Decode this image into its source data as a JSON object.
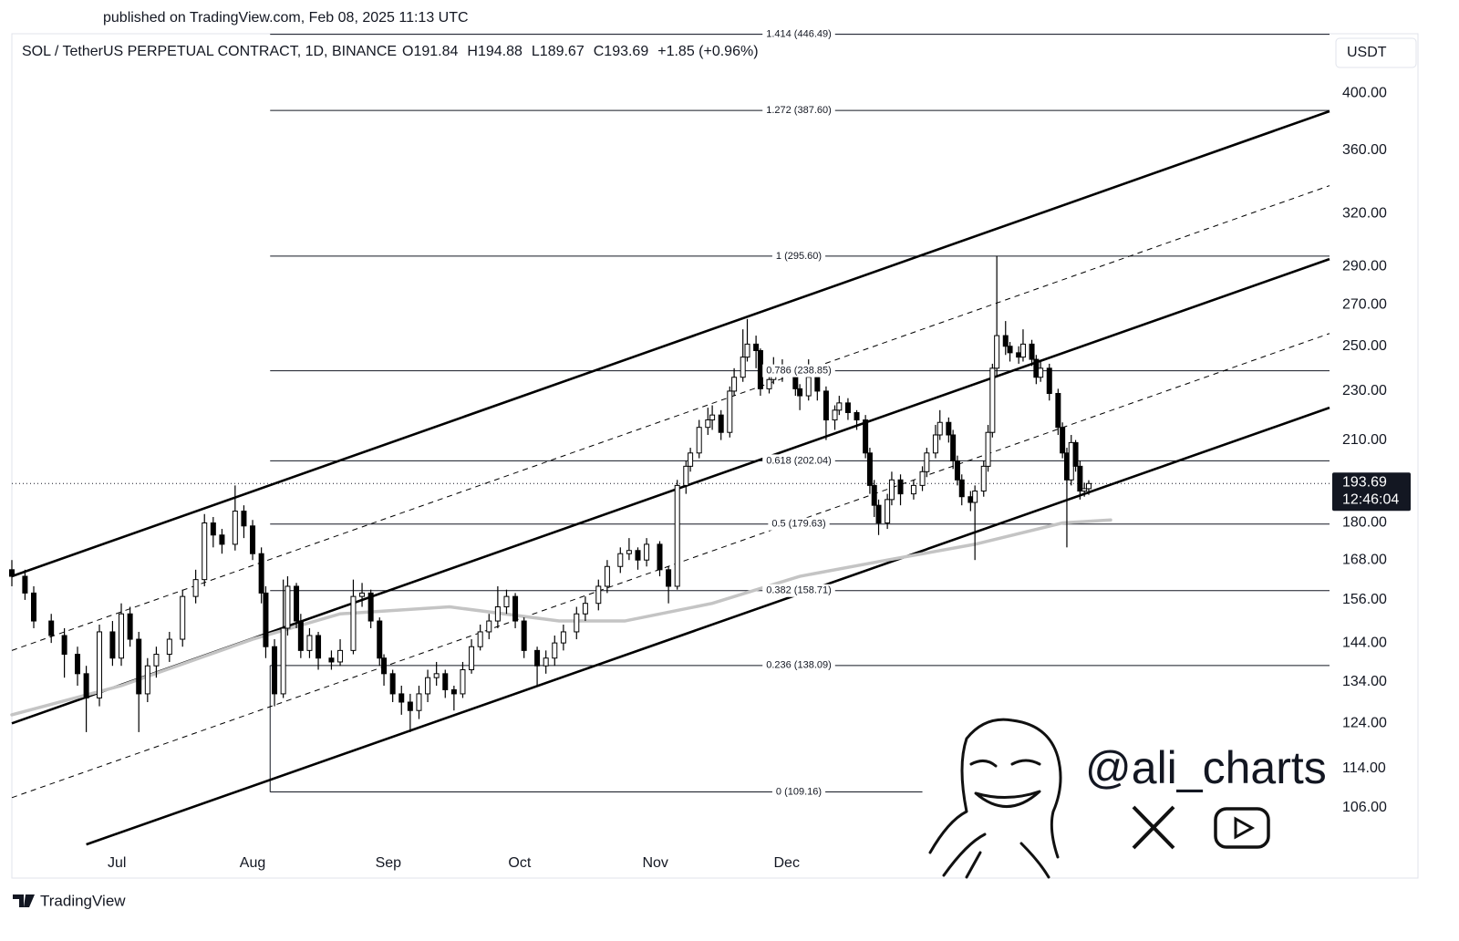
{
  "published": "published on TradingView.com, Feb 08, 2025 11:13 UTC",
  "chart_data": {
    "type": "candlestick",
    "title": "SOL / TetherUS PERPETUAL CONTRACT, 1D, BINANCE",
    "ohlc_legend": [
      "O191.84",
      "H194.88",
      "L189.67",
      "C193.69",
      "+1.85 (+0.96%)"
    ],
    "currency": "USDT",
    "log_scale": true,
    "up_color": "#ffffff",
    "down_color": "#000000",
    "border_color": "#000000",
    "xlim": [
      0,
      301
    ],
    "xticks": [
      {
        "value": 24,
        "label": "Jul"
      },
      {
        "value": 55,
        "label": "Aug"
      },
      {
        "value": 86,
        "label": "Sep"
      },
      {
        "value": 116,
        "label": "Oct"
      },
      {
        "value": 147,
        "label": "Nov"
      },
      {
        "value": 177,
        "label": "Dec"
      }
    ],
    "ylim": [
      93,
      447
    ],
    "yticks": [
      {
        "value": 400,
        "label": "400.00"
      },
      {
        "value": 360,
        "label": "360.00"
      },
      {
        "value": 320,
        "label": "320.00"
      },
      {
        "value": 290,
        "label": "290.00"
      },
      {
        "value": 270,
        "label": "270.00"
      },
      {
        "value": 250,
        "label": "250.00"
      },
      {
        "value": 230,
        "label": "230.00"
      },
      {
        "value": 210,
        "label": "210.00"
      },
      {
        "value": 180,
        "label": "180.00"
      },
      {
        "value": 168,
        "label": "168.00"
      },
      {
        "value": 156,
        "label": "156.00"
      },
      {
        "value": 144,
        "label": "144.00"
      },
      {
        "value": 134,
        "label": "134.00"
      },
      {
        "value": 124,
        "label": "124.00"
      },
      {
        "value": 114,
        "label": "114.00"
      },
      {
        "value": 106,
        "label": "106.00"
      }
    ],
    "x": [
      0,
      3,
      5,
      9,
      12,
      15,
      17,
      20,
      23,
      25,
      27,
      29,
      31,
      33,
      36,
      39,
      42,
      44,
      46,
      48,
      51,
      53,
      55,
      57,
      58,
      60,
      62,
      63,
      65,
      66,
      68,
      70,
      73,
      75,
      78,
      80,
      82,
      84,
      85,
      87,
      89,
      91,
      93,
      95,
      97,
      99,
      101,
      103,
      105,
      107,
      109,
      111,
      113,
      115,
      117,
      120,
      122,
      124,
      126,
      129,
      131,
      134,
      136,
      139,
      141,
      143,
      145,
      148,
      150,
      152,
      154,
      155,
      157,
      159,
      160,
      162,
      164,
      165,
      167,
      168,
      170,
      171,
      173,
      174,
      176,
      179,
      180,
      182,
      184,
      186,
      188,
      189,
      191,
      193,
      195,
      196,
      197,
      198,
      200,
      201,
      203,
      206,
      208,
      209,
      211,
      212,
      214,
      215,
      216,
      217,
      219,
      220,
      222,
      223,
      224,
      225,
      227,
      228,
      230,
      231,
      233,
      234,
      235,
      237,
      239,
      240,
      241,
      242,
      243,
      244,
      245,
      246
    ],
    "ohlc": [
      [
        165,
        168,
        160,
        163
      ],
      [
        163,
        165,
        156,
        158
      ],
      [
        158,
        160,
        148,
        150
      ],
      [
        150,
        152,
        144,
        146
      ],
      [
        146,
        148,
        135,
        141
      ],
      [
        141,
        143,
        133,
        136
      ],
      [
        136,
        138,
        122,
        130
      ],
      [
        130,
        149,
        128,
        147
      ],
      [
        147,
        150,
        138,
        140
      ],
      [
        140,
        155,
        138,
        152
      ],
      [
        152,
        154,
        143,
        145
      ],
      [
        145,
        147,
        122,
        131
      ],
      [
        131,
        140,
        129,
        138
      ],
      [
        138,
        143,
        135,
        141
      ],
      [
        141,
        147,
        139,
        145
      ],
      [
        145,
        159,
        143,
        157
      ],
      [
        157,
        165,
        155,
        162
      ],
      [
        162,
        183,
        160,
        180
      ],
      [
        180,
        182,
        172,
        176
      ],
      [
        176,
        178,
        170,
        173
      ],
      [
        173,
        193,
        171,
        184
      ],
      [
        184,
        186,
        175,
        179
      ],
      [
        179,
        181,
        168,
        170
      ],
      [
        170,
        172,
        155,
        158
      ],
      [
        158,
        160,
        140,
        143
      ],
      [
        143,
        145,
        128,
        131
      ],
      [
        131,
        162,
        130,
        148
      ],
      [
        148,
        163,
        146,
        160
      ],
      [
        160,
        161,
        148,
        150
      ],
      [
        150,
        152,
        140,
        142
      ],
      [
        142,
        148,
        140,
        146
      ],
      [
        146,
        147,
        137,
        140
      ],
      [
        140,
        142,
        137,
        139
      ],
      [
        139,
        145,
        138,
        142
      ],
      [
        142,
        162,
        141,
        157
      ],
      [
        157,
        161,
        154,
        158
      ],
      [
        158,
        159,
        148,
        150
      ],
      [
        150,
        151,
        138,
        140
      ],
      [
        140,
        141,
        133,
        136
      ],
      [
        136,
        137,
        129,
        131
      ],
      [
        131,
        133,
        126,
        129
      ],
      [
        129,
        131,
        122,
        127
      ],
      [
        127,
        133,
        125,
        131
      ],
      [
        131,
        137,
        129,
        135
      ],
      [
        135,
        139,
        133,
        136
      ],
      [
        136,
        137,
        130,
        132
      ],
      [
        132,
        133,
        127,
        131
      ],
      [
        131,
        139,
        130,
        137
      ],
      [
        137,
        145,
        136,
        143
      ],
      [
        143,
        149,
        142,
        147
      ],
      [
        147,
        152,
        145,
        150
      ],
      [
        150,
        160,
        148,
        154
      ],
      [
        154,
        159,
        152,
        157
      ],
      [
        157,
        158,
        148,
        150
      ],
      [
        150,
        151,
        140,
        142
      ],
      [
        142,
        143,
        133,
        138
      ],
      [
        138,
        142,
        136,
        140
      ],
      [
        140,
        146,
        138,
        144
      ],
      [
        144,
        149,
        142,
        147
      ],
      [
        147,
        154,
        145,
        152
      ],
      [
        152,
        157,
        150,
        155
      ],
      [
        155,
        162,
        153,
        160
      ],
      [
        160,
        168,
        158,
        166
      ],
      [
        166,
        172,
        164,
        170
      ],
      [
        170,
        175,
        168,
        171
      ],
      [
        171,
        172,
        165,
        168
      ],
      [
        168,
        175,
        166,
        173
      ],
      [
        173,
        174,
        163,
        165
      ],
      [
        165,
        166,
        155,
        160
      ],
      [
        160,
        195,
        159,
        193
      ],
      [
        193,
        202,
        190,
        200
      ],
      [
        200,
        207,
        198,
        205
      ],
      [
        205,
        218,
        203,
        215
      ],
      [
        215,
        223,
        212,
        218
      ],
      [
        218,
        224,
        214,
        220
      ],
      [
        220,
        222,
        210,
        213
      ],
      [
        213,
        232,
        211,
        230
      ],
      [
        230,
        240,
        228,
        236
      ],
      [
        236,
        258,
        234,
        245
      ],
      [
        245,
        263,
        243,
        251
      ],
      [
        251,
        255,
        240,
        248
      ],
      [
        248,
        249,
        228,
        231
      ],
      [
        231,
        238,
        229,
        235
      ],
      [
        235,
        245,
        233,
        240
      ],
      [
        240,
        244,
        234,
        238
      ],
      [
        238,
        240,
        228,
        231
      ],
      [
        231,
        233,
        222,
        228
      ],
      [
        228,
        244,
        226,
        236
      ],
      [
        236,
        238,
        226,
        230
      ],
      [
        230,
        232,
        210,
        218
      ],
      [
        218,
        224,
        214,
        222
      ],
      [
        222,
        228,
        220,
        225
      ],
      [
        225,
        227,
        218,
        221
      ],
      [
        221,
        222,
        214,
        218
      ],
      [
        218,
        220,
        203,
        205
      ],
      [
        205,
        207,
        190,
        193
      ],
      [
        193,
        195,
        182,
        186
      ],
      [
        186,
        188,
        176,
        180
      ],
      [
        180,
        190,
        178,
        188
      ],
      [
        188,
        198,
        186,
        195
      ],
      [
        195,
        197,
        186,
        190
      ],
      [
        190,
        195,
        188,
        193
      ],
      [
        193,
        200,
        191,
        198
      ],
      [
        198,
        207,
        196,
        205
      ],
      [
        205,
        216,
        203,
        212
      ],
      [
        212,
        222,
        210,
        217
      ],
      [
        217,
        219,
        209,
        212
      ],
      [
        212,
        214,
        199,
        202
      ],
      [
        202,
        204,
        193,
        195
      ],
      [
        195,
        197,
        186,
        189
      ],
      [
        189,
        191,
        184,
        187
      ],
      [
        187,
        193,
        168,
        191
      ],
      [
        191,
        202,
        189,
        200
      ],
      [
        200,
        216,
        198,
        213
      ],
      [
        213,
        242,
        211,
        240
      ],
      [
        240,
        295.6,
        236,
        255
      ],
      [
        255,
        262,
        246,
        250
      ],
      [
        250,
        252,
        243,
        247
      ],
      [
        247,
        250,
        242,
        245
      ],
      [
        245,
        258,
        243,
        251
      ],
      [
        251,
        253,
        241,
        244
      ],
      [
        244,
        246,
        233,
        236
      ],
      [
        236,
        243,
        234,
        240
      ],
      [
        240,
        242,
        226,
        229
      ],
      [
        229,
        231,
        212,
        215
      ],
      [
        215,
        217,
        203,
        205
      ],
      [
        205,
        207,
        172,
        195
      ],
      [
        195,
        212,
        193,
        209
      ],
      [
        209,
        210,
        198,
        200
      ],
      [
        200,
        202,
        188,
        191
      ],
      [
        191,
        194,
        189,
        191.84
      ],
      [
        191.84,
        194.88,
        189.67,
        193.69
      ]
    ],
    "moving_average": {
      "color": "#c4c4c4",
      "x": [
        0,
        25,
        55,
        75,
        100,
        125,
        140,
        160,
        180,
        200,
        220,
        240,
        251
      ],
      "values": [
        126,
        133,
        145,
        152,
        154,
        150,
        150,
        155,
        163,
        168,
        173,
        180,
        181
      ]
    },
    "channel_lines": [
      {
        "style": "solid",
        "x": [
          0,
          301
        ],
        "values": [
          163,
          387
        ]
      },
      {
        "style": "dashed",
        "x": [
          0,
          301
        ],
        "values": [
          142,
          337
        ]
      },
      {
        "style": "solid",
        "x": [
          0,
          301
        ],
        "values": [
          124,
          294
        ]
      },
      {
        "style": "dashed",
        "x": [
          0,
          301
        ],
        "values": [
          108,
          256
        ]
      },
      {
        "style": "solid",
        "x": [
          17,
          301
        ],
        "values": [
          99,
          223
        ]
      }
    ],
    "fib": {
      "x_start": 59,
      "x_end": 301,
      "levels": [
        {
          "value": 446.49,
          "label": "1.414 (446.49)"
        },
        {
          "value": 387.6,
          "label": "1.272 (387.60)"
        },
        {
          "value": 295.6,
          "label": "1 (295.60)"
        },
        {
          "value": 238.85,
          "label": "0.786 (238.85)"
        },
        {
          "value": 202.04,
          "label": "0.618 (202.04)"
        },
        {
          "value": 179.63,
          "label": "0.5 (179.63)"
        },
        {
          "value": 158.71,
          "label": "0.382 (158.71)"
        },
        {
          "value": 138.09,
          "label": "0.236 (138.09)"
        },
        {
          "value": 109.16,
          "label": "0 (109.16)",
          "x_end": 208
        }
      ]
    },
    "last_price": 193.69,
    "countdown": "12:46:04"
  },
  "watermark": "@ali_charts",
  "footer": "TradingView"
}
